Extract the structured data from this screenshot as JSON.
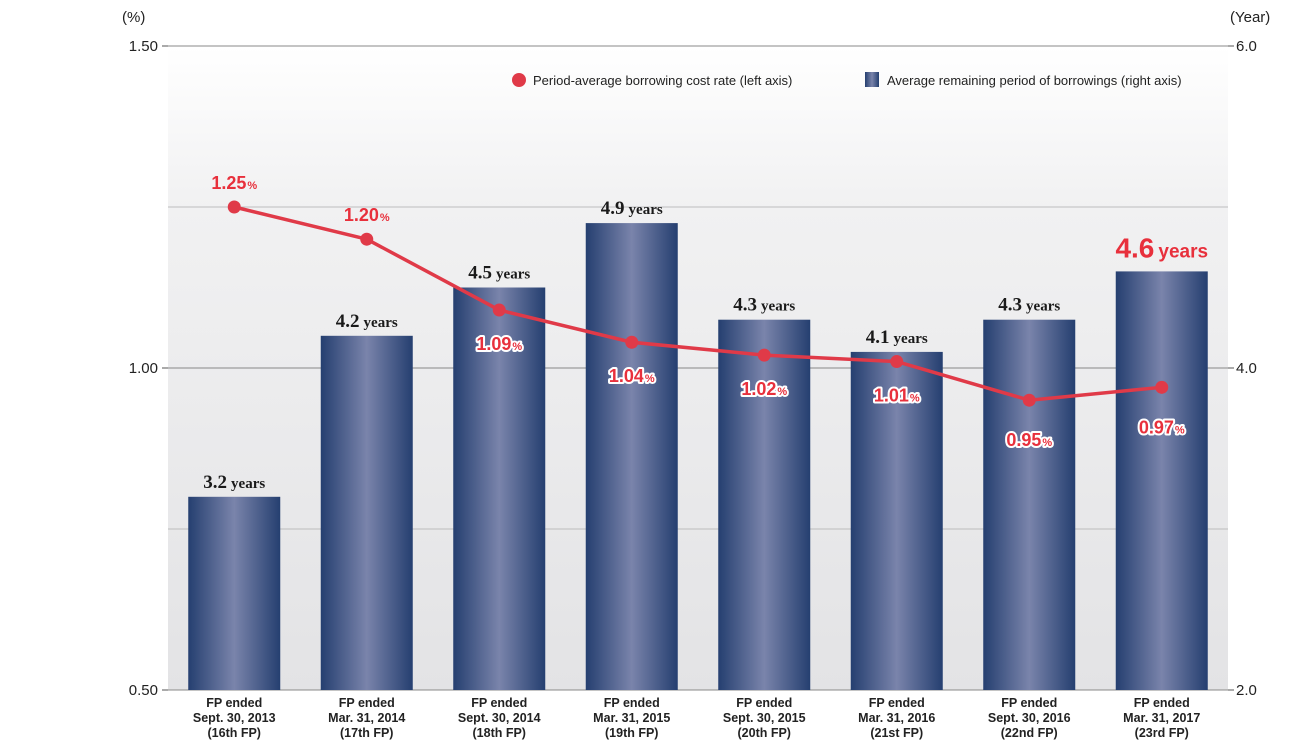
{
  "chart_data": {
    "type": "bar+line",
    "left_axis": {
      "unit": "(%)",
      "ylim": [
        0.5,
        1.5
      ],
      "ticks": [
        "0.50",
        "1.00",
        "1.50"
      ]
    },
    "right_axis": {
      "unit": "(Year)",
      "ylim": [
        2.0,
        6.0
      ],
      "ticks": [
        "2.0",
        "4.0",
        "6.0"
      ]
    },
    "grid": true,
    "categories": [
      [
        "FP ended",
        "Sept. 30, 2013",
        "(16th FP)"
      ],
      [
        "FP ended",
        "Mar. 31, 2014",
        "(17th FP)"
      ],
      [
        "FP ended",
        "Sept. 30, 2014",
        "(18th FP)"
      ],
      [
        "FP ended",
        "Mar. 31, 2015",
        "(19th FP)"
      ],
      [
        "FP ended",
        "Sept. 30, 2015",
        "(20th FP)"
      ],
      [
        "FP ended",
        "Mar. 31, 2016",
        "(21st FP)"
      ],
      [
        "FP ended",
        "Sept. 30, 2016",
        "(22nd FP)"
      ],
      [
        "FP ended",
        "Mar. 31, 2017",
        "(23rd FP)"
      ]
    ],
    "series": [
      {
        "name": "Average remaining period of borrowings (right axis)",
        "type": "bar",
        "axis": "right",
        "values": [
          3.2,
          4.2,
          4.5,
          4.9,
          4.3,
          4.1,
          4.3,
          4.6
        ],
        "labels": [
          "3.2",
          "4.2",
          "4.5",
          "4.9",
          "4.3",
          "4.1",
          "4.3",
          "4.6"
        ],
        "label_unit": "years",
        "highlight_index": 7,
        "color": "#2a4a7f"
      },
      {
        "name": "Period-average borrowing cost rate (left axis)",
        "type": "line",
        "axis": "left",
        "values": [
          1.25,
          1.2,
          1.09,
          1.04,
          1.02,
          1.01,
          0.95,
          0.97
        ],
        "labels": [
          "1.25",
          "1.20",
          "1.09",
          "1.04",
          "1.02",
          "1.01",
          "0.95",
          "0.97"
        ],
        "label_unit": "%",
        "color": "#e03a48"
      }
    ],
    "legend": {
      "placement": "top-right"
    }
  }
}
